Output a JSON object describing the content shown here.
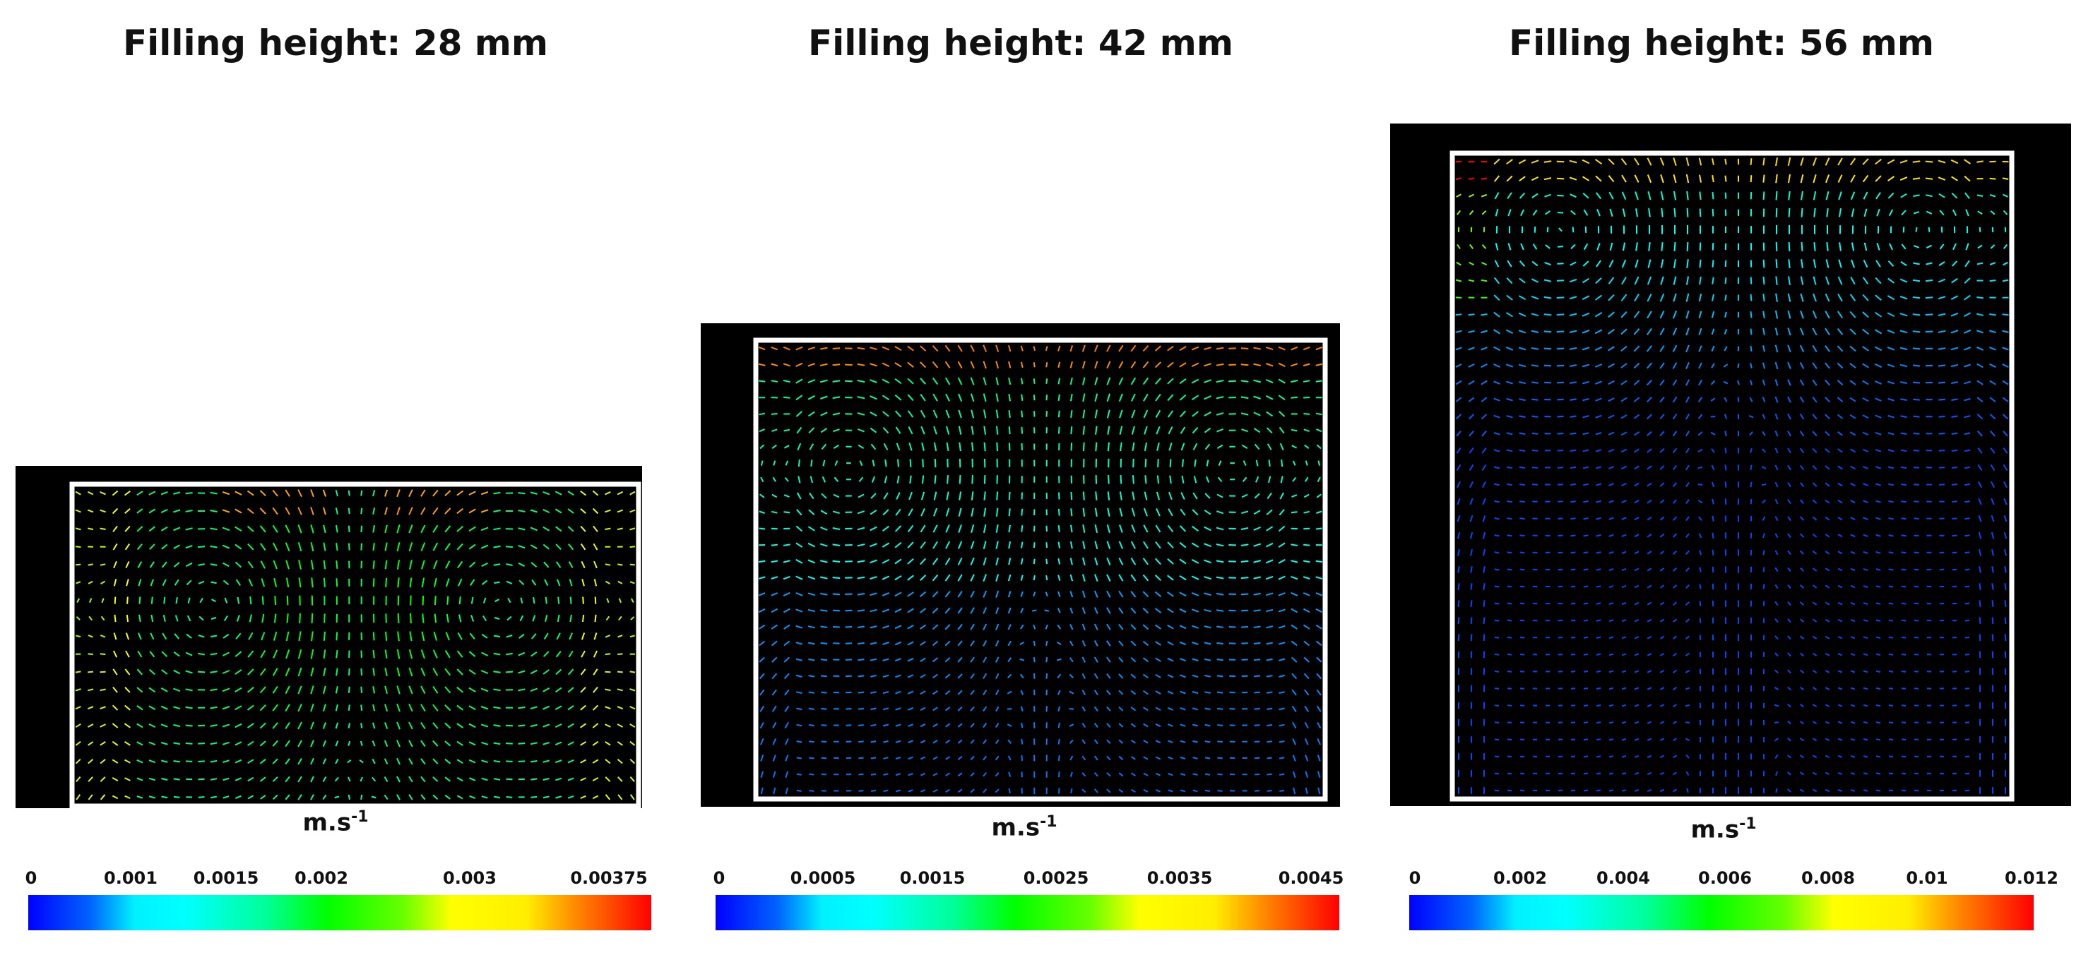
{
  "panels": [
    {
      "title": "Filling height: 28 mm",
      "unit_base": "m.s",
      "unit_exp": "-1",
      "colorbar_ticks": [
        "0",
        "0.001",
        "0.0015",
        "0.002",
        "0.003",
        "0.00375"
      ],
      "colorbar_min": 0,
      "colorbar_max": 0.00375
    },
    {
      "title": "Filling height: 42 mm",
      "unit_base": "m.s",
      "unit_exp": "-1",
      "colorbar_ticks": [
        "0",
        "0.0005",
        "0.0015",
        "0.0025",
        "0.0035",
        "0.0045"
      ],
      "colorbar_min": 0,
      "colorbar_max": 0.0045
    },
    {
      "title": "Filling height: 56 mm",
      "unit_base": "m.s",
      "unit_exp": "-1",
      "colorbar_ticks": [
        "0",
        "0.002",
        "0.004",
        "0.006",
        "0.008",
        "0.01",
        "0.012"
      ],
      "colorbar_min": 0,
      "colorbar_max": 0.012
    }
  ],
  "colors": {
    "frame": "#ffffff",
    "background": "#000000"
  }
}
